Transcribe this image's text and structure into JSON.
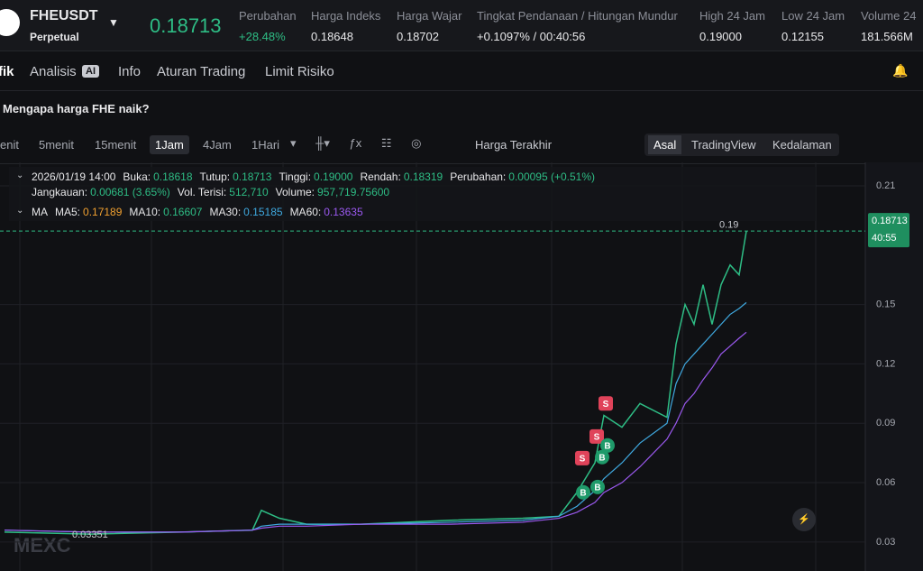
{
  "header": {
    "symbol": "FHEUSDT",
    "contract": "Perpetual",
    "price": "0.18713",
    "stats": [
      {
        "label": "Perubahan",
        "value": "+28.48%"
      },
      {
        "label": "Harga Indeks",
        "value": "0.18648"
      },
      {
        "label": "Harga Wajar",
        "value": "0.18702"
      },
      {
        "label": "Tingkat Pendanaan / Hitungan Mundur",
        "value": "+0.1097% / 00:40:56"
      },
      {
        "label": "High 24 Jam",
        "value": "0.19000"
      },
      {
        "label": "Low 24 Jam",
        "value": "0.12155"
      },
      {
        "label": "Volume 24",
        "value": "181.566M"
      }
    ]
  },
  "tabs": {
    "items": [
      "fik",
      "Analisis",
      "Info",
      "Aturan Trading",
      "Limit Risiko"
    ],
    "badge": "AI"
  },
  "question": "Mengapa harga FHE naik?",
  "toolbar": {
    "intervals": [
      "enit",
      "5menit",
      "15menit",
      "1Jam",
      "4Jam",
      "1Hari"
    ],
    "active": "1Jam",
    "price_source": "Harga Terakhir",
    "views": [
      "Asal",
      "TradingView",
      "Kedalaman"
    ],
    "active_view": "Asal"
  },
  "ohlc": {
    "time": "2026/01/19 14:00",
    "fields": [
      {
        "label": "Buka:",
        "value": "0.18618"
      },
      {
        "label": "Tutup:",
        "value": "0.18713"
      },
      {
        "label": "Tinggi:",
        "value": "0.19000"
      },
      {
        "label": "Rendah:",
        "value": "0.18319"
      },
      {
        "label": "Perubahan:",
        "value": "0.00095 (+0.51%)"
      }
    ],
    "fields2": [
      {
        "label": "Jangkauan:",
        "value": "0.00681 (3.65%)"
      },
      {
        "label": "Vol. Terisi:",
        "value": "512,710"
      },
      {
        "label": "Volume:",
        "value": "957,719.75600"
      }
    ]
  },
  "ma": {
    "title": "MA",
    "items": [
      {
        "label": "MA5:",
        "value": "0.17189",
        "color": "#f0a030"
      },
      {
        "label": "MA10:",
        "value": "0.16607",
        "color": "#2ebd85"
      },
      {
        "label": "MA30:",
        "value": "0.15185",
        "color": "#3fa9e0"
      },
      {
        "label": "MA60:",
        "value": "0.13635",
        "color": "#9b59f0"
      }
    ]
  },
  "chart_data": {
    "type": "line",
    "xlim": [
      0,
      960
    ],
    "ylim": [
      0.019,
      0.22
    ],
    "yticks": [
      0.03,
      0.06,
      0.09,
      0.12,
      0.15,
      0.21
    ],
    "grid": true,
    "x": [
      5,
      100,
      200,
      280,
      290,
      310,
      340,
      400,
      500,
      580,
      620,
      640,
      660,
      670,
      690,
      710,
      740,
      750,
      760,
      770,
      780,
      790,
      800,
      810,
      820,
      828
    ],
    "series": [
      {
        "name": "Harga",
        "color": "#2ebd85",
        "values": [
          0.035,
          0.034,
          0.035,
          0.036,
          0.046,
          0.042,
          0.039,
          0.039,
          0.041,
          0.042,
          0.043,
          0.055,
          0.07,
          0.094,
          0.088,
          0.1,
          0.093,
          0.13,
          0.15,
          0.14,
          0.16,
          0.14,
          0.16,
          0.17,
          0.165,
          0.187
        ]
      },
      {
        "name": "MA30",
        "color": "#3fa9e0",
        "values": [
          0.036,
          0.035,
          0.035,
          0.036,
          0.038,
          0.039,
          0.039,
          0.039,
          0.04,
          0.041,
          0.043,
          0.048,
          0.056,
          0.062,
          0.07,
          0.08,
          0.09,
          0.11,
          0.12,
          0.125,
          0.13,
          0.135,
          0.14,
          0.145,
          0.148,
          0.151
        ]
      },
      {
        "name": "MA60",
        "color": "#9b59f0",
        "values": [
          0.036,
          0.035,
          0.035,
          0.036,
          0.037,
          0.038,
          0.038,
          0.039,
          0.039,
          0.04,
          0.042,
          0.045,
          0.05,
          0.055,
          0.06,
          0.068,
          0.082,
          0.09,
          0.1,
          0.105,
          0.112,
          0.118,
          0.125,
          0.129,
          0.133,
          0.136
        ]
      }
    ],
    "signals": [
      {
        "label": "S",
        "x": 672,
        "y": 0.1
      },
      {
        "label": "S",
        "x": 662,
        "y": 0.0833
      },
      {
        "label": "S",
        "x": 646,
        "y": 0.0724
      },
      {
        "label": "B",
        "x": 674,
        "y": 0.0788
      },
      {
        "label": "B",
        "x": 668,
        "y": 0.0729
      },
      {
        "label": "B",
        "x": 647,
        "y": 0.0551
      },
      {
        "label": "B",
        "x": 663,
        "y": 0.0578
      }
    ],
    "last_price": 0.18713,
    "countdown": "40:55",
    "high": {
      "x": 828,
      "value": 0.19
    },
    "low": {
      "x": 85,
      "value": 0.03351
    },
    "watermark": "MEXC"
  }
}
